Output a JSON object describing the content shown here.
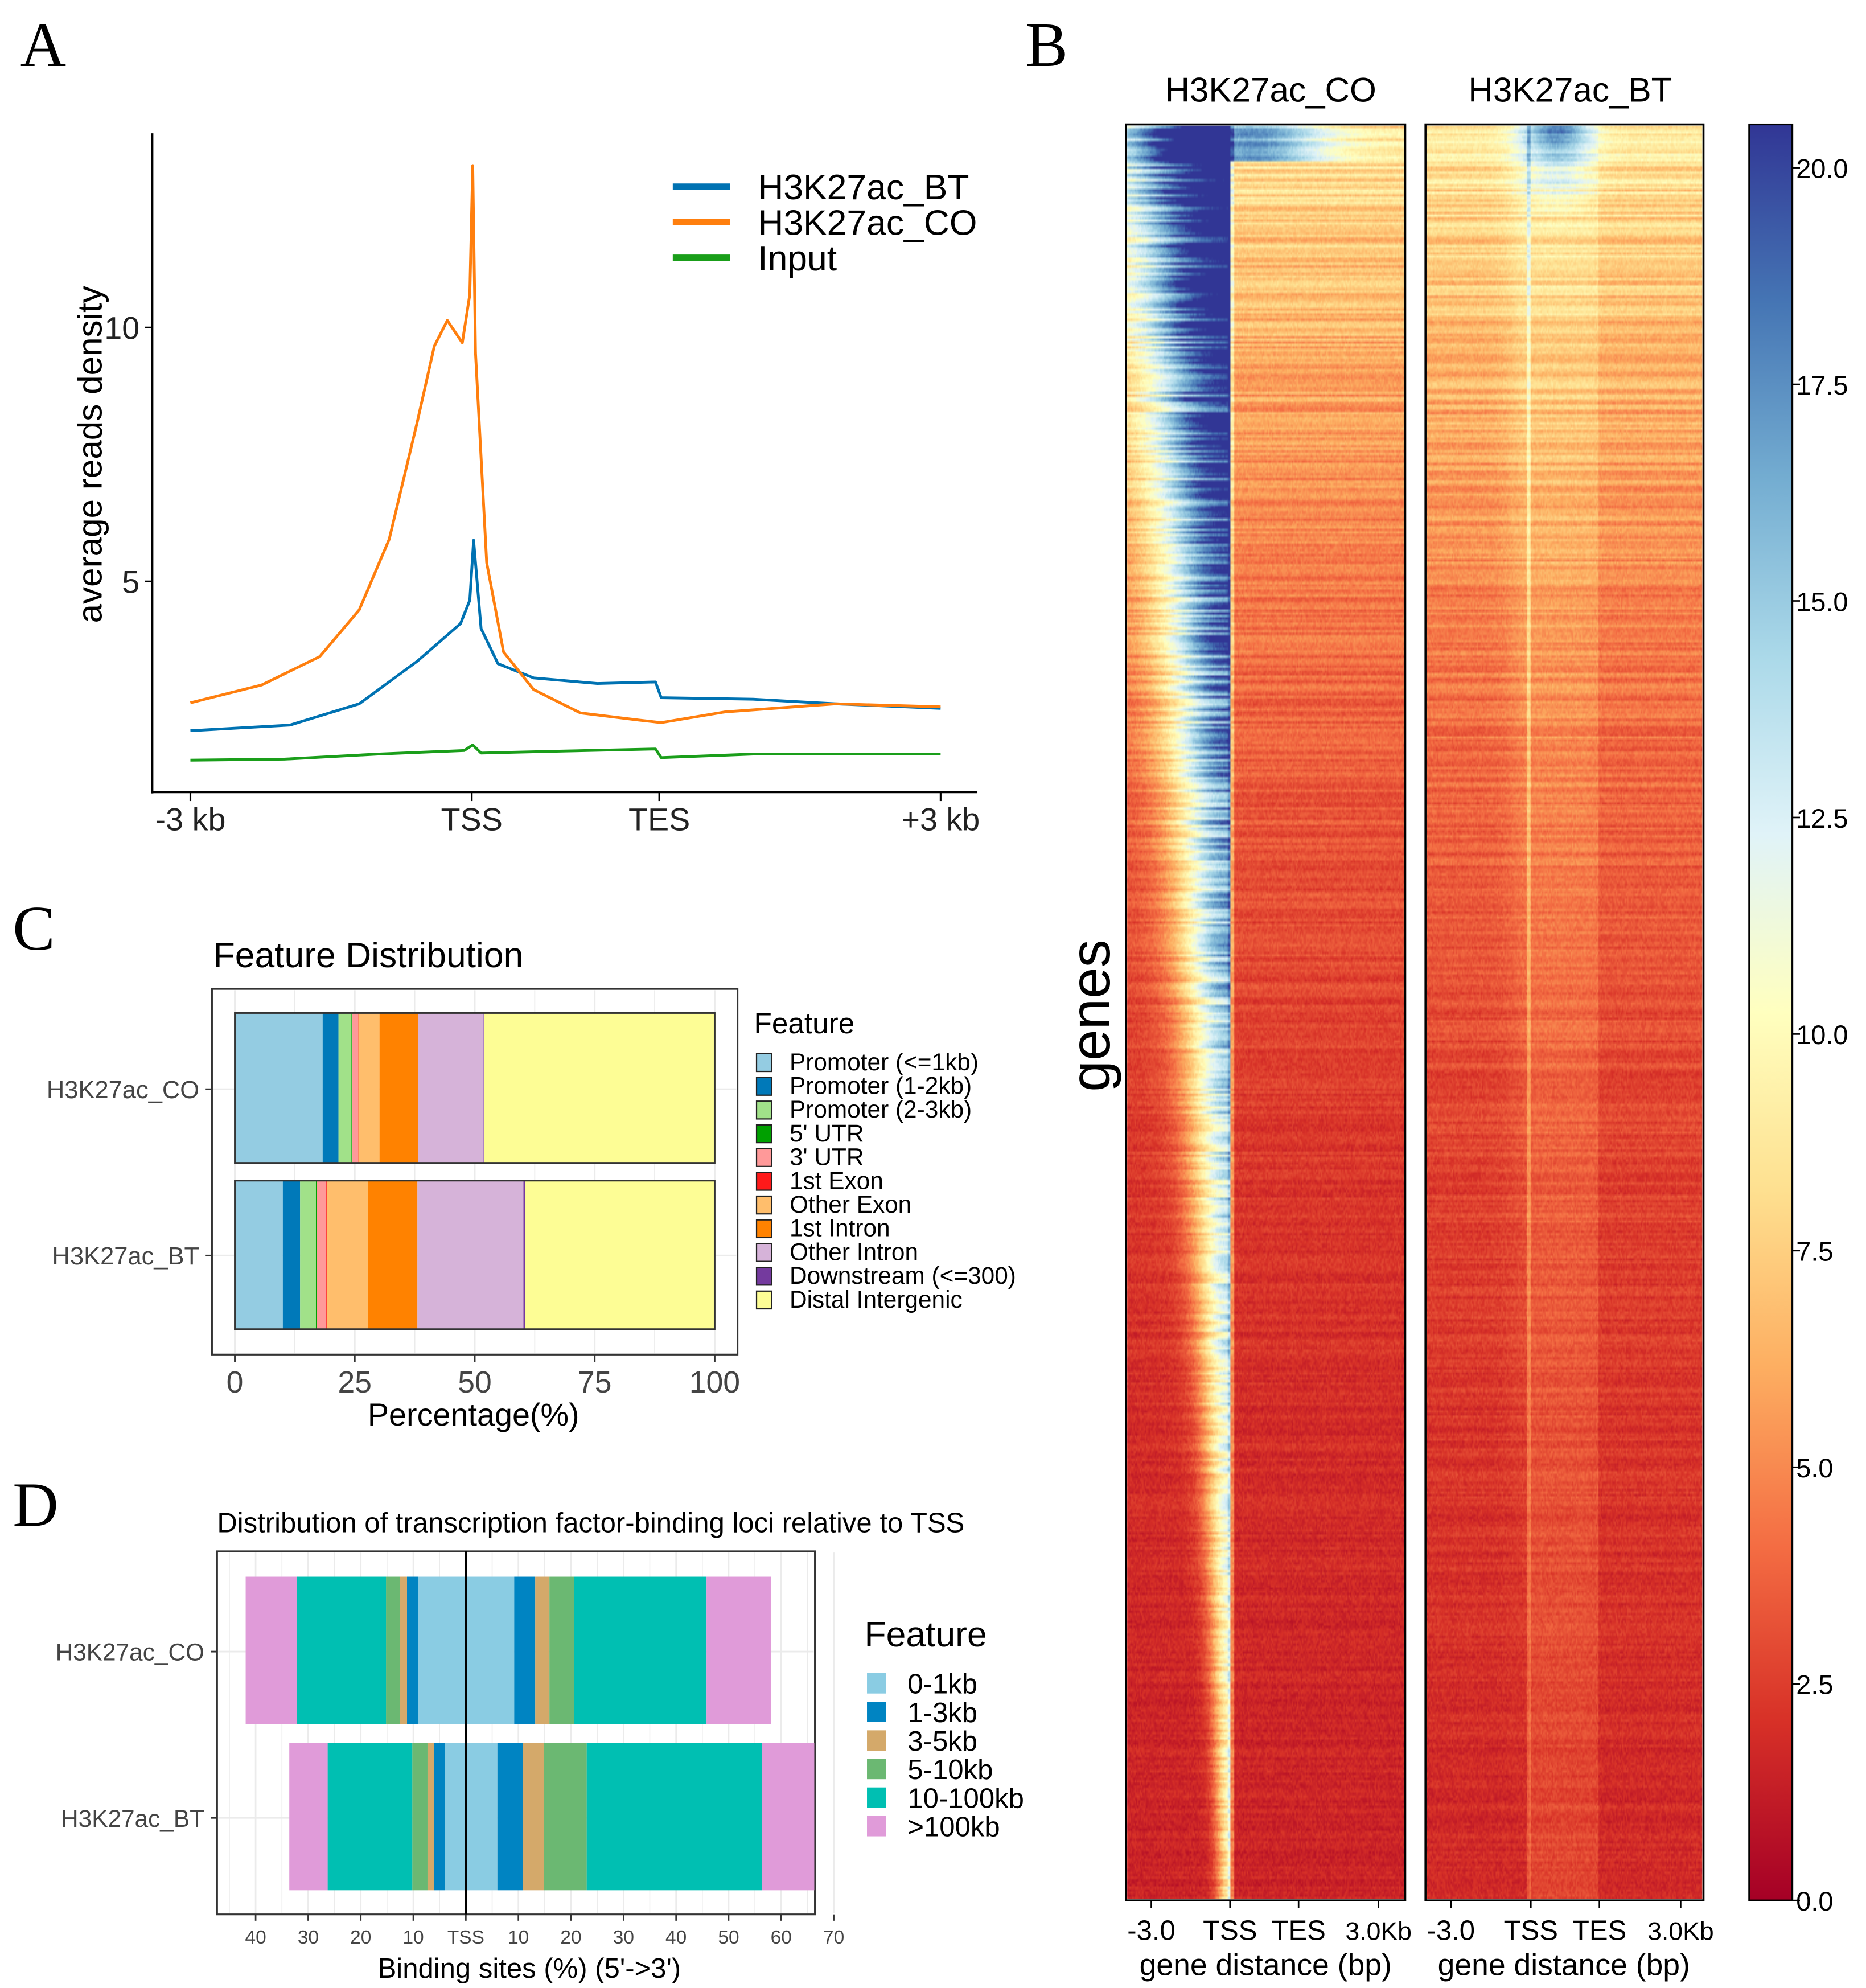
{
  "panel_labels": {
    "a": "A",
    "b": "B",
    "c": "C",
    "d": "D"
  },
  "chart_data": [
    {
      "id": "A",
      "type": "line",
      "title": "",
      "xlabel": "",
      "ylabel": "average reads density",
      "x_ticks": [
        {
          "label": "-3 kb",
          "pos": 0
        },
        {
          "label": "TSS",
          "pos": 1.5
        },
        {
          "label": "TES",
          "pos": 2.5
        },
        {
          "label": "+3 kb",
          "pos": 4
        }
      ],
      "y_ticks": [
        {
          "label": "5",
          "value": 5
        },
        {
          "label": "10",
          "value": 10
        }
      ],
      "ylim": [
        0.9,
        13.8
      ],
      "xlim": [
        -0.1,
        4.2
      ],
      "legend_position": "top-right",
      "series": [
        {
          "name": "H3K27ac_BT",
          "color": "#0072B2",
          "points": [
            [
              0,
              2.06
            ],
            [
              0.53,
              2.17
            ],
            [
              0.9,
              2.59
            ],
            [
              1.21,
              3.43
            ],
            [
              1.44,
              4.17
            ],
            [
              1.49,
              4.63
            ],
            [
              1.51,
              5.81
            ],
            [
              1.55,
              4.07
            ],
            [
              1.64,
              3.38
            ],
            [
              1.83,
              3.1
            ],
            [
              2.17,
              2.99
            ],
            [
              2.48,
              3.02
            ],
            [
              2.51,
              2.71
            ],
            [
              3.0,
              2.68
            ],
            [
              3.44,
              2.59
            ],
            [
              4.0,
              2.5
            ]
          ]
        },
        {
          "name": "H3K27ac_CO",
          "color": "#FF7F0E",
          "points": [
            [
              0,
              2.61
            ],
            [
              0.38,
              2.96
            ],
            [
              0.69,
              3.52
            ],
            [
              0.9,
              4.44
            ],
            [
              1.06,
              5.83
            ],
            [
              1.21,
              8.15
            ],
            [
              1.3,
              9.63
            ],
            [
              1.37,
              10.14
            ],
            [
              1.45,
              9.7
            ],
            [
              1.49,
              10.65
            ],
            [
              1.505,
              13.19
            ],
            [
              1.52,
              9.5
            ],
            [
              1.58,
              5.37
            ],
            [
              1.67,
              3.61
            ],
            [
              1.83,
              2.87
            ],
            [
              2.08,
              2.41
            ],
            [
              2.39,
              2.27
            ],
            [
              2.51,
              2.22
            ],
            [
              2.85,
              2.43
            ],
            [
              3.44,
              2.59
            ],
            [
              4.0,
              2.53
            ]
          ]
        },
        {
          "name": "Input",
          "color": "#1A9E1A",
          "points": [
            [
              0,
              1.48
            ],
            [
              0.5,
              1.5
            ],
            [
              1.0,
              1.6
            ],
            [
              1.46,
              1.67
            ],
            [
              1.505,
              1.78
            ],
            [
              1.55,
              1.62
            ],
            [
              2.0,
              1.66
            ],
            [
              2.48,
              1.7
            ],
            [
              2.51,
              1.53
            ],
            [
              3.0,
              1.6
            ],
            [
              4.0,
              1.6
            ]
          ]
        }
      ]
    },
    {
      "id": "B",
      "type": "heatmap",
      "panels": [
        "H3K27ac_CO",
        "H3K27ac_BT"
      ],
      "ylabel": "genes",
      "xlabel": "gene distance (bp)",
      "x_ticks": [
        "-3.0",
        "TSS",
        "TES",
        "3.0Kb"
      ],
      "colorbar": {
        "range": [
          0,
          20.5
        ],
        "ticks": [
          "0.0",
          "2.5",
          "5.0",
          "7.5",
          "10.0",
          "12.5",
          "15.0",
          "17.5",
          "20.0"
        ],
        "colormap": "RdYlBu"
      }
    },
    {
      "id": "C",
      "type": "bar",
      "orientation": "horizontal-stacked",
      "title": "Feature Distribution",
      "xlabel": "Percentage(%)",
      "xlim": [
        0,
        100
      ],
      "x_ticks": [
        "0",
        "25",
        "50",
        "75",
        "100"
      ],
      "categories": [
        "H3K27ac_CO",
        "H3K27ac_BT"
      ],
      "legend_title": "Feature",
      "legend_position": "right",
      "series": [
        {
          "name": "Promoter (<=1kb)",
          "color": "#94CCE2",
          "values": [
            18.3,
            10.0
          ]
        },
        {
          "name": "Promoter (1-2kb)",
          "color": "#0079B9",
          "values": [
            3.3,
            3.6
          ]
        },
        {
          "name": "Promoter (2-3kb)",
          "color": "#A1E189",
          "values": [
            2.7,
            3.3
          ]
        },
        {
          "name": "5' UTR",
          "color": "#00A000",
          "values": [
            0.2,
            0.15
          ]
        },
        {
          "name": "3' UTR",
          "color": "#FF9999",
          "values": [
            1.2,
            2.0
          ]
        },
        {
          "name": "1st Exon",
          "color": "#FF1A1A",
          "values": [
            0.05,
            0.1
          ]
        },
        {
          "name": "Other Exon",
          "color": "#FFBE6C",
          "values": [
            4.4,
            8.6
          ]
        },
        {
          "name": "1st Intron",
          "color": "#FF8200",
          "values": [
            8.0,
            10.3
          ]
        },
        {
          "name": "Other Intron",
          "color": "#D6B3D9",
          "values": [
            13.7,
            22.1
          ]
        },
        {
          "name": "Downstream (<=300)",
          "color": "#743A9E",
          "values": [
            0.05,
            0.3
          ]
        },
        {
          "name": "Distal Intergenic",
          "color": "#FDFD95",
          "values": [
            48.3,
            39.6
          ]
        }
      ]
    },
    {
      "id": "D",
      "type": "bar",
      "orientation": "horizontal-diverging-stacked",
      "title": "Distribution of transcription factor-binding loci relative to TSS",
      "xlabel": "Binding sites (%) (5'->3')",
      "xlim": [
        -46,
        72
      ],
      "x_ticks": [
        {
          "label": "40",
          "value": -40
        },
        {
          "label": "30",
          "value": -30
        },
        {
          "label": "20",
          "value": -20
        },
        {
          "label": "10",
          "value": -10
        },
        {
          "label": "TSS",
          "value": 0
        },
        {
          "label": "10",
          "value": 10
        },
        {
          "label": "20",
          "value": 20
        },
        {
          "label": "30",
          "value": 30
        },
        {
          "label": "40",
          "value": 40
        },
        {
          "label": "50",
          "value": 50
        },
        {
          "label": "60",
          "value": 60
        },
        {
          "label": "70",
          "value": 70
        }
      ],
      "categories": [
        "H3K27ac_CO",
        "H3K27ac_BT"
      ],
      "legend_title": "Feature",
      "legend_position": "right",
      "series": [
        {
          "name": "0-1kb",
          "color": "#8ACCE3",
          "upstream": [
            9.1,
            4.0
          ],
          "downstream": [
            9.2,
            6.0
          ]
        },
        {
          "name": "1-3kb",
          "color": "#0084C2",
          "upstream": [
            2.1,
            2.0
          ],
          "downstream": [
            4.0,
            4.9
          ]
        },
        {
          "name": "3-5kb",
          "color": "#D4A96A",
          "upstream": [
            1.4,
            1.3
          ],
          "downstream": [
            2.7,
            4.0
          ]
        },
        {
          "name": "5-10kb",
          "color": "#6BB872",
          "upstream": [
            2.6,
            2.9
          ],
          "downstream": [
            4.7,
            8.1
          ]
        },
        {
          "name": "10-100kb",
          "color": "#00BFB2",
          "upstream": [
            17.0,
            16.1
          ],
          "downstream": [
            25.2,
            33.3
          ]
        },
        {
          "name": ">100kb",
          "color": "#E09BD9",
          "upstream": [
            9.7,
            7.3
          ],
          "downstream": [
            12.3,
            10.0
          ]
        }
      ]
    }
  ]
}
